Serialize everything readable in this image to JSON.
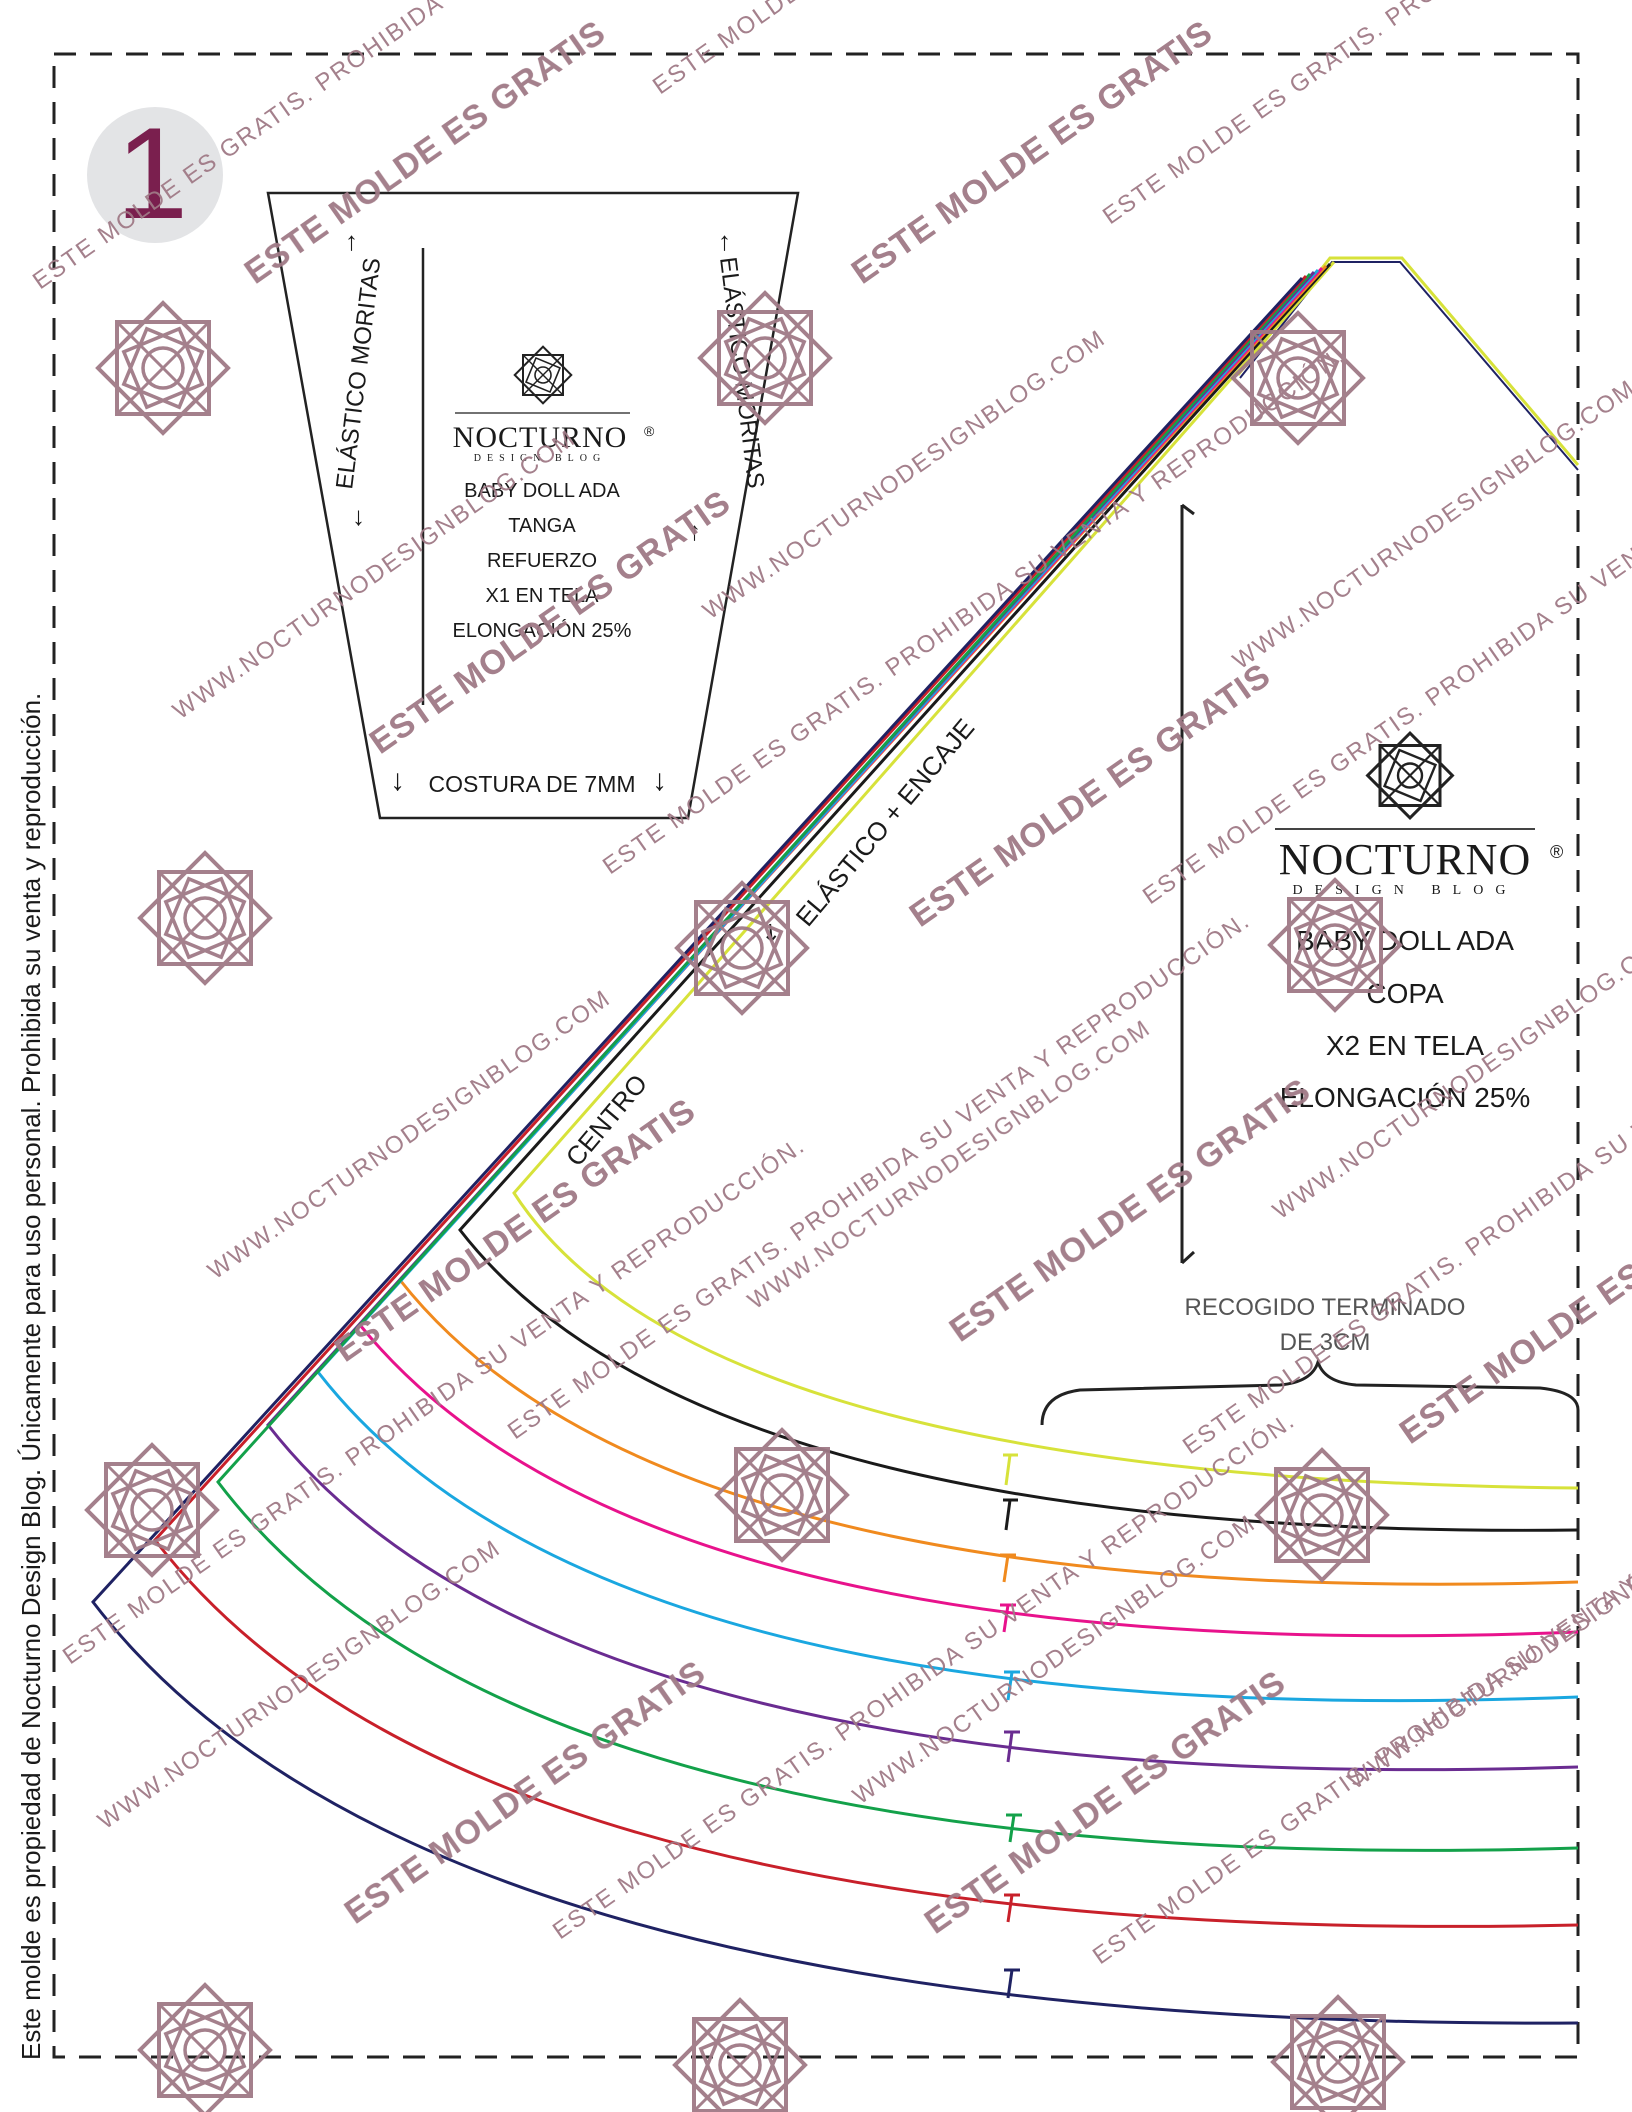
{
  "page_number": "1",
  "side_notice": "Este molde es propiedad de Nocturno Design Blog. Únicamente para uso personal. Prohibida su venta y reproducción.",
  "brand": {
    "name": "NOCTURNO",
    "registered": "®",
    "tagline": "DESIGN BLOG"
  },
  "piece_small": {
    "title": "BABY DOLL ADA",
    "lines": [
      "TANGA",
      "REFUERZO",
      "X1 EN TELA",
      "ELONGACIÓN 25%"
    ],
    "left_edge_label": "ELÁSTICO MORITAS",
    "right_edge_label": "ELÁSTICO MORITAS",
    "bottom_edge_label": "COSTURA DE 7MM"
  },
  "piece_large": {
    "title": "BABY DOLL ADA",
    "lines": [
      "COPA",
      "X2 EN TELA",
      "ELONGACIÓN 25%"
    ],
    "edge_label": "ELÁSTICO + ENCAJE",
    "center_label": "CENTRO",
    "gather_label_1": "RECOGIDO TERMINADO",
    "gather_label_2": "DE 3CM"
  },
  "size_colors": [
    "#d7e23a",
    "#1a1a1a",
    "#f08a1e",
    "#e8128c",
    "#1aa7e0",
    "#6a2c91",
    "#13a14a",
    "#c8202a",
    "#1f2263"
  ],
  "watermarks": {
    "free": "ESTE MOLDE ES GRATIS",
    "prohibited": "WWW.NOCTURNODESIGNBLOG.COM",
    "prohibited_2": "ESTE MOLDE ES GRATIS. PROHIBIDA SU VENTA Y REPRODUCCIÓN."
  },
  "colors": {
    "watermark": "#a07a86",
    "page_badge": "#e3e4e6",
    "page_number": "#7a1f4e"
  },
  "icons": [
    "rose-logo-icon",
    "arrow-icon"
  ]
}
